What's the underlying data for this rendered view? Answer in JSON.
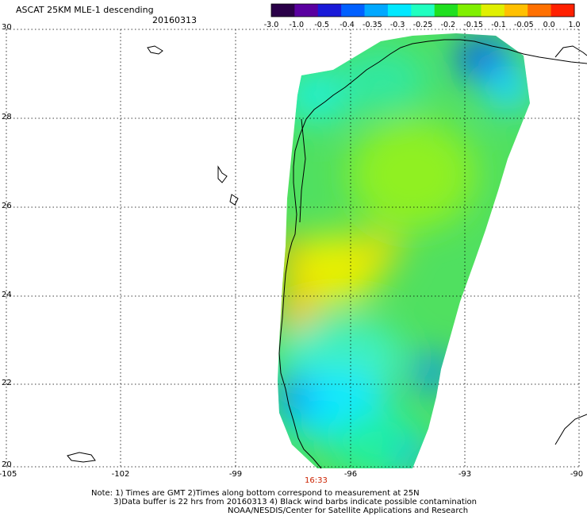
{
  "header": {
    "title": "ASCAT 25KM MLE-1 descending",
    "date": "20160313"
  },
  "colorbar": {
    "labels": [
      "-3.0",
      "-1.0",
      "-0.5",
      "-0.4",
      "-0.35",
      "-0.3",
      "-0.25",
      "-0.2",
      "-0.15",
      "-0.1",
      "-0.05",
      "0.0",
      "1.0"
    ],
    "colors": [
      "#2a0048",
      "#5a00a0",
      "#1a1ad8",
      "#0060ff",
      "#00a8ff",
      "#00e8ff",
      "#20ffc0",
      "#20e020",
      "#80f000",
      "#e0f000",
      "#ffc000",
      "#ff7000",
      "#ff2000"
    ]
  },
  "axes": {
    "lat_labels": [
      "30",
      "28",
      "26",
      "24",
      "22",
      "20"
    ],
    "lon_labels": [
      "-105",
      "-102",
      "-99",
      "-96",
      "-93",
      "-90"
    ]
  },
  "time_label": "16:33",
  "notes": {
    "line1": "Note: 1) Times are GMT 2)Times along bottom correspond to measurement at 25N",
    "line2": "3)Data buffer is 22 hrs from 20160313 4) Black wind barbs indicate possible contamination",
    "line3": "NOAA/NESDIS/Center for Satellite Applications and Research"
  }
}
